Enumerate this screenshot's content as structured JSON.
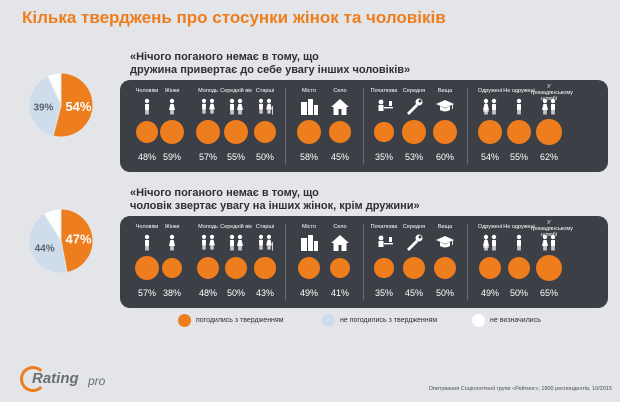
{
  "title": "Кілька тверджень про стосунки жінок та чоловіків",
  "colors": {
    "agree": "#ee7d1d",
    "disagree": "#cfdcec",
    "undecided": "#ffffff",
    "panel": "#3c3f46",
    "title": "#ee7d1d"
  },
  "legend": {
    "agree": "погодились з твердженням",
    "disagree": "не погодились з твердженням",
    "undecided": "не визначились"
  },
  "footnote": "Опитування Соціологічної групи «Рейтинг», 1800 респондентів, 10/2015",
  "logo": {
    "main": "Rating",
    "suffix": "pro"
  },
  "chart_data": [
    {
      "type": "pie",
      "statement_line1": "«Нічого поганого немає в тому, що",
      "statement_line2": "дружина привертає до себе увагу інших чоловіків»",
      "slices": [
        {
          "label": "погодились з твердженням",
          "value": 54,
          "display": "54%"
        },
        {
          "label": "не погодились з твердженням",
          "value": 39,
          "display": "39%"
        },
        {
          "label": "не визначились",
          "value": 7,
          "display": ""
        }
      ],
      "groups": [
        {
          "label": "Чоловіки",
          "icon": "man-icon",
          "value": 48,
          "display": "48%"
        },
        {
          "label": "Жінки",
          "icon": "woman-icon",
          "value": 59,
          "display": "59%"
        },
        {
          "label": "Молодь",
          "icon": "youth-icon",
          "value": 57,
          "display": "57%"
        },
        {
          "label": "Середній вік",
          "icon": "middle-age-icon",
          "value": 55,
          "display": "55%"
        },
        {
          "label": "Старші",
          "icon": "elderly-icon",
          "value": 50,
          "display": "50%"
        },
        {
          "label": "Місто",
          "icon": "city-icon",
          "value": 58,
          "display": "58%"
        },
        {
          "label": "Село",
          "icon": "village-icon",
          "value": 45,
          "display": "45%"
        },
        {
          "label": "Початкова",
          "icon": "primary-education-icon",
          "value": 35,
          "display": "35%"
        },
        {
          "label": "Середня",
          "icon": "secondary-education-icon",
          "value": 53,
          "display": "53%"
        },
        {
          "label": "Вища",
          "icon": "higher-education-icon",
          "value": 60,
          "display": "60%"
        },
        {
          "label": "Одружені",
          "icon": "married-icon",
          "value": 54,
          "display": "54%"
        },
        {
          "label": "Не одружені",
          "icon": "single-icon",
          "value": 55,
          "display": "55%"
        },
        {
          "label": "У громадянському шлюбі",
          "icon": "civil-marriage-icon",
          "value": 62,
          "display": "62%"
        }
      ]
    },
    {
      "type": "pie",
      "statement_line1": "«Нічого поганого немає в тому, що",
      "statement_line2": "чоловік звертає увагу на інших жінок, крім дружини»",
      "slices": [
        {
          "label": "погодились з твердженням",
          "value": 47,
          "display": "47%"
        },
        {
          "label": "не погодились з твердженням",
          "value": 44,
          "display": "44%"
        },
        {
          "label": "не визначились",
          "value": 9,
          "display": ""
        }
      ],
      "groups": [
        {
          "label": "Чоловіки",
          "icon": "man-icon",
          "value": 57,
          "display": "57%"
        },
        {
          "label": "Жінки",
          "icon": "woman-icon",
          "value": 38,
          "display": "38%"
        },
        {
          "label": "Молодь",
          "icon": "youth-icon",
          "value": 48,
          "display": "48%"
        },
        {
          "label": "Середній вік",
          "icon": "middle-age-icon",
          "value": 50,
          "display": "50%"
        },
        {
          "label": "Старші",
          "icon": "elderly-icon",
          "value": 43,
          "display": "43%"
        },
        {
          "label": "Місто",
          "icon": "city-icon",
          "value": 49,
          "display": "49%"
        },
        {
          "label": "Село",
          "icon": "village-icon",
          "value": 41,
          "display": "41%"
        },
        {
          "label": "Початкова",
          "icon": "primary-education-icon",
          "value": 35,
          "display": "35%"
        },
        {
          "label": "Середня",
          "icon": "secondary-education-icon",
          "value": 45,
          "display": "45%"
        },
        {
          "label": "Вища",
          "icon": "higher-education-icon",
          "value": 50,
          "display": "50%"
        },
        {
          "label": "Одружені",
          "icon": "married-icon",
          "value": 49,
          "display": "49%"
        },
        {
          "label": "Не одружені",
          "icon": "single-icon",
          "value": 50,
          "display": "50%"
        },
        {
          "label": "У громадянському шлюбі",
          "icon": "civil-marriage-icon",
          "value": 65,
          "display": "65%"
        }
      ]
    }
  ]
}
